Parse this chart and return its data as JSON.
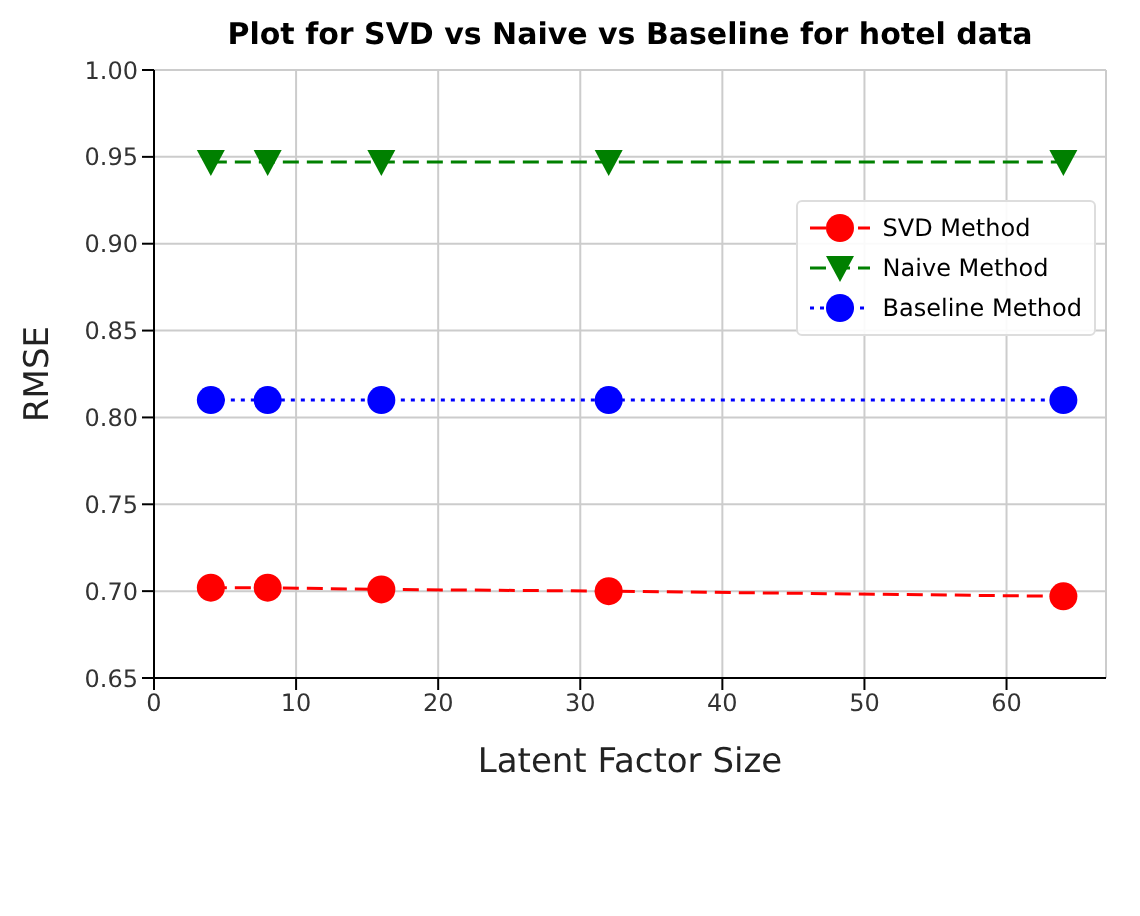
{
  "chart_data": {
    "type": "line",
    "title": "Plot for SVD vs Naive vs Baseline for hotel data",
    "xlabel": "Latent Factor Size",
    "ylabel": "RMSE",
    "x": [
      4,
      8,
      16,
      32,
      64
    ],
    "series": [
      {
        "name": "SVD Method",
        "color": "#ff0000",
        "values": [
          0.702,
          0.702,
          0.701,
          0.7,
          0.697
        ],
        "marker": "circle",
        "line_style": "dashed"
      },
      {
        "name": "Naive Method",
        "color": "#008000",
        "values": [
          0.947,
          0.947,
          0.947,
          0.947,
          0.947
        ],
        "marker": "triangle",
        "line_style": "dashed"
      },
      {
        "name": "Baseline Method",
        "color": "#0000ff",
        "values": [
          0.81,
          0.81,
          0.81,
          0.81,
          0.81
        ],
        "marker": "circle",
        "line_style": "dotted"
      }
    ],
    "xlim": [
      0,
      67
    ],
    "xticks": [
      0,
      10,
      20,
      30,
      40,
      50,
      60
    ],
    "ylim": [
      0.65,
      1.0
    ],
    "yticks": [
      0.65,
      {
        "value": 0.7,
        "label": "0.70"
      },
      0.75,
      {
        "value": 0.8,
        "label": "0.80"
      },
      0.85,
      {
        "value": 0.9,
        "label": "0.90"
      },
      0.95,
      {
        "value": 1.0,
        "label": "1.00"
      }
    ],
    "grid": true,
    "legend": "right"
  }
}
